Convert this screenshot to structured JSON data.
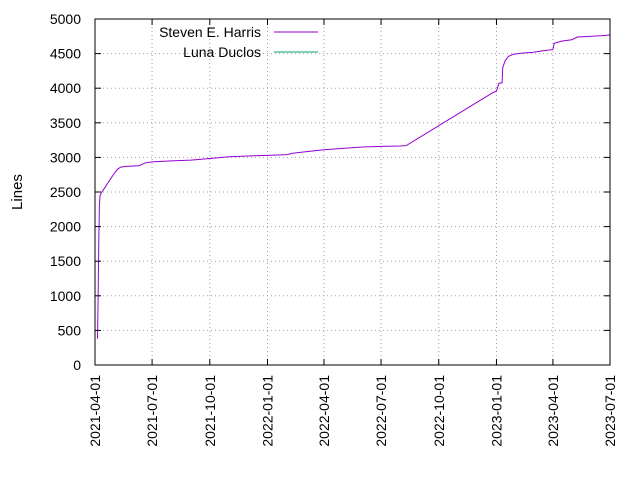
{
  "chart_data": {
    "type": "line",
    "title": "",
    "xlabel": "",
    "ylabel": "Lines",
    "ylim": [
      0,
      5000
    ],
    "xlim": [
      "2021-04-01",
      "2023-07-01"
    ],
    "grid": true,
    "legend_position": "top-left",
    "y_ticks": [
      0,
      500,
      1000,
      1500,
      2000,
      2500,
      3000,
      3500,
      4000,
      4500,
      5000
    ],
    "x_ticks": [
      "2021-04-01",
      "2021-07-01",
      "2021-10-01",
      "2022-01-01",
      "2022-04-01",
      "2022-07-01",
      "2022-10-01",
      "2023-01-01",
      "2023-04-01",
      "2023-07-01"
    ],
    "series": [
      {
        "name": "Steven E. Harris",
        "color": "#9400d3",
        "points": [
          [
            "2021-04-05",
            380
          ],
          [
            "2021-04-06",
            1000
          ],
          [
            "2021-04-07",
            1750
          ],
          [
            "2021-04-08",
            2300
          ],
          [
            "2021-04-09",
            2450
          ],
          [
            "2021-04-12",
            2500
          ],
          [
            "2021-04-18",
            2580
          ],
          [
            "2021-04-25",
            2680
          ],
          [
            "2021-05-01",
            2760
          ],
          [
            "2021-05-07",
            2830
          ],
          [
            "2021-05-12",
            2860
          ],
          [
            "2021-05-20",
            2870
          ],
          [
            "2021-06-01",
            2875
          ],
          [
            "2021-06-10",
            2880
          ],
          [
            "2021-06-20",
            2920
          ],
          [
            "2021-07-01",
            2935
          ],
          [
            "2021-08-01",
            2950
          ],
          [
            "2021-09-01",
            2960
          ],
          [
            "2021-10-01",
            2985
          ],
          [
            "2021-11-01",
            3010
          ],
          [
            "2021-12-01",
            3020
          ],
          [
            "2022-01-01",
            3030
          ],
          [
            "2022-02-01",
            3040
          ],
          [
            "2022-02-10",
            3060
          ],
          [
            "2022-03-01",
            3080
          ],
          [
            "2022-04-01",
            3110
          ],
          [
            "2022-05-01",
            3130
          ],
          [
            "2022-06-01",
            3150
          ],
          [
            "2022-07-01",
            3160
          ],
          [
            "2022-08-01",
            3165
          ],
          [
            "2022-08-10",
            3170
          ],
          [
            "2022-12-25",
            3930
          ],
          [
            "2023-01-01",
            3960
          ],
          [
            "2023-01-05",
            4070
          ],
          [
            "2023-01-10",
            4080
          ],
          [
            "2023-01-11",
            4300
          ],
          [
            "2023-01-15",
            4400
          ],
          [
            "2023-01-20",
            4460
          ],
          [
            "2023-01-28",
            4490
          ],
          [
            "2023-02-15",
            4510
          ],
          [
            "2023-03-01",
            4520
          ],
          [
            "2023-03-15",
            4540
          ],
          [
            "2023-04-01",
            4560
          ],
          [
            "2023-04-03",
            4650
          ],
          [
            "2023-04-15",
            4680
          ],
          [
            "2023-05-01",
            4700
          ],
          [
            "2023-05-10",
            4740
          ],
          [
            "2023-06-01",
            4750
          ],
          [
            "2023-06-20",
            4760
          ],
          [
            "2023-07-01",
            4770
          ]
        ]
      },
      {
        "name": "Luna Duclos",
        "color": "#009e73",
        "points": []
      }
    ]
  }
}
